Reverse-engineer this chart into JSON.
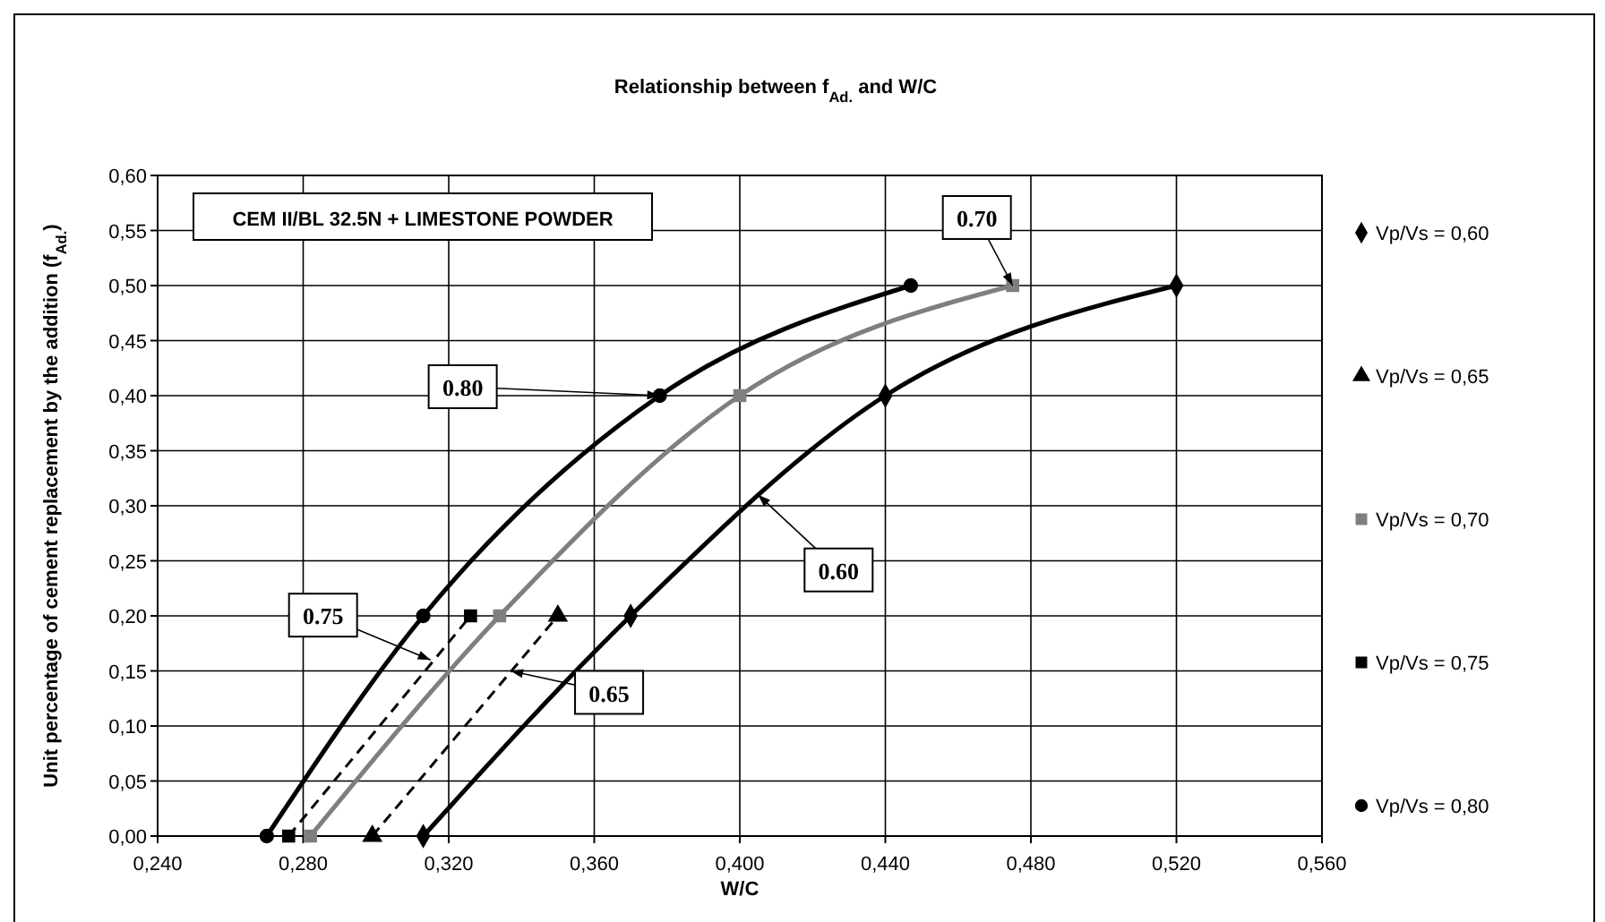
{
  "chart_data": {
    "type": "line",
    "title": "Relationship between f$_{Ad.}$ and W/C",
    "xlabel": "W/C",
    "ylabel": "Unit percentage of cement replacement by the addition (f$_{Ad.}$)",
    "xlim": [
      0.24,
      0.56
    ],
    "xticks": [
      {
        "value": 0.24,
        "label": "0,240"
      },
      {
        "value": 0.28,
        "label": "0,280"
      },
      {
        "value": 0.32,
        "label": "0,320"
      },
      {
        "value": 0.36,
        "label": "0,360"
      },
      {
        "value": 0.4,
        "label": "0,400"
      },
      {
        "value": 0.44,
        "label": "0,440"
      },
      {
        "value": 0.48,
        "label": "0,480"
      },
      {
        "value": 0.52,
        "label": "0,520"
      },
      {
        "value": 0.56,
        "label": "0,560"
      }
    ],
    "ylim": [
      0,
      0.6
    ],
    "yticks": [
      {
        "value": 0,
        "label": "0,00"
      },
      {
        "value": 0.05,
        "label": "0,05"
      },
      {
        "value": 0.1,
        "label": "0,10"
      },
      {
        "value": 0.15,
        "label": "0,15"
      },
      {
        "value": 0.2,
        "label": "0,20"
      },
      {
        "value": 0.25,
        "label": "0,25"
      },
      {
        "value": 0.3,
        "label": "0,30"
      },
      {
        "value": 0.35,
        "label": "0,35"
      },
      {
        "value": 0.4,
        "label": "0,40"
      },
      {
        "value": 0.45,
        "label": "0,45"
      },
      {
        "value": 0.5,
        "label": "0,50"
      },
      {
        "value": 0.55,
        "label": "0,55"
      },
      {
        "value": 0.6,
        "label": "0,60"
      }
    ],
    "grid": true,
    "legend": "right",
    "series": [
      {
        "name": "Vp/Vs = 0,60",
        "color": "#000000",
        "marker": "diamond",
        "line_style": "solid",
        "x": [
          0.313,
          0.37,
          0.44,
          0.52
        ],
        "values": [
          0,
          0.2,
          0.4,
          0.5
        ]
      },
      {
        "name": "Vp/Vs = 0,65",
        "color": "#000000",
        "marker": "triangle",
        "line_style": "dashed",
        "x": [
          0.299,
          0.35
        ],
        "values": [
          0,
          0.2
        ]
      },
      {
        "name": "Vp/Vs = 0,70",
        "color": "#7f7f7f",
        "marker": "square",
        "line_style": "solid",
        "x": [
          0.282,
          0.334,
          0.4,
          0.475
        ],
        "values": [
          0,
          0.2,
          0.4,
          0.5
        ]
      },
      {
        "name": "Vp/Vs = 0,75",
        "color": "#000000",
        "marker": "square",
        "line_style": "dashed",
        "x": [
          0.276,
          0.326
        ],
        "values": [
          0,
          0.2
        ]
      },
      {
        "name": "Vp/Vs = 0,80",
        "color": "#000000",
        "marker": "circle",
        "line_style": "solid",
        "x": [
          0.27,
          0.313,
          0.378,
          0.447
        ],
        "values": [
          0,
          0.2,
          0.4,
          0.5
        ]
      }
    ],
    "annotations": [
      "CEM II/BL 32.5N + LIMESTONE POWDER",
      {
        "text": "0.80",
        "x": 0.378,
        "y": 0.4
      },
      {
        "text": "0.70",
        "x": 0.475,
        "y": 0.5
      },
      {
        "text": "0.60",
        "x": 0.405,
        "y": 0.31
      },
      {
        "text": "0.75",
        "x": 0.315,
        "y": 0.16
      },
      {
        "text": "0.65",
        "x": 0.337,
        "y": 0.15
      }
    ]
  }
}
